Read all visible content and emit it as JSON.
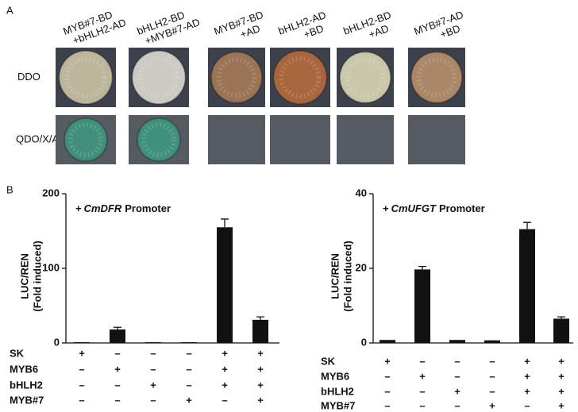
{
  "panel_a": {
    "label": "A",
    "columns": [
      [
        "MYB#7-BD",
        "+bHLH2-AD"
      ],
      [
        "bHLH2-BD",
        "+MYB#7-AD"
      ],
      [
        "MYB#7-BD",
        "+AD"
      ],
      [
        "bHLH2-AD",
        "+BD"
      ],
      [
        "bHLH2-BD",
        "+AD"
      ],
      [
        "MYB#7-AD",
        "+BD"
      ]
    ],
    "rows": [
      "DDO",
      "QDO/X/A"
    ]
  },
  "panel_b": {
    "label": "B"
  },
  "chart_data": [
    {
      "type": "bar",
      "annotation": {
        "prefix": "+",
        "gene": "CmDFR",
        "suffix": "Promoter"
      },
      "y_label": [
        "LUC/REN",
        "(Fold induced)"
      ],
      "values": [
        1,
        18,
        1,
        1,
        155,
        31
      ],
      "errors": [
        0,
        3,
        0,
        0,
        11,
        4
      ],
      "color": "#111111",
      "ylim": [
        0,
        200
      ],
      "yticks": [
        0,
        100,
        200
      ],
      "treatments": [
        {
          "name": "SK",
          "signs": [
            "+",
            "–",
            "–",
            "–",
            "+",
            "+"
          ]
        },
        {
          "name": "MYB6",
          "signs": [
            "–",
            "+",
            "–",
            "–",
            "+",
            "+"
          ]
        },
        {
          "name": "bHLH2",
          "signs": [
            "–",
            "–",
            "+",
            "–",
            "+",
            "+"
          ]
        },
        {
          "name": "MYB#7",
          "signs": [
            "–",
            "–",
            "–",
            "+",
            "–",
            "+"
          ]
        }
      ]
    },
    {
      "type": "bar",
      "annotation": {
        "prefix": "+",
        "gene": "CmUFGT",
        "suffix": "Promoter"
      },
      "y_label": [
        "LUC/REN",
        "(Fold induced)"
      ],
      "values": [
        0.8,
        19.7,
        0.8,
        0.7,
        30.5,
        6.5
      ],
      "errors": [
        0,
        0.8,
        0,
        0,
        1.8,
        0.5
      ],
      "color": "#111111",
      "ylim": [
        0,
        40
      ],
      "yticks": [
        0,
        20,
        40
      ],
      "treatments": [
        {
          "name": "SK",
          "signs": [
            "+",
            "–",
            "–",
            "–",
            "+",
            "+"
          ]
        },
        {
          "name": "MYB6",
          "signs": [
            "–",
            "+",
            "–",
            "–",
            "+",
            "+"
          ]
        },
        {
          "name": "bHLH2",
          "signs": [
            "–",
            "–",
            "+",
            "–",
            "+",
            "+"
          ]
        },
        {
          "name": "MYB#7",
          "signs": [
            "–",
            "–",
            "–",
            "+",
            "–",
            "+"
          ]
        }
      ]
    }
  ]
}
